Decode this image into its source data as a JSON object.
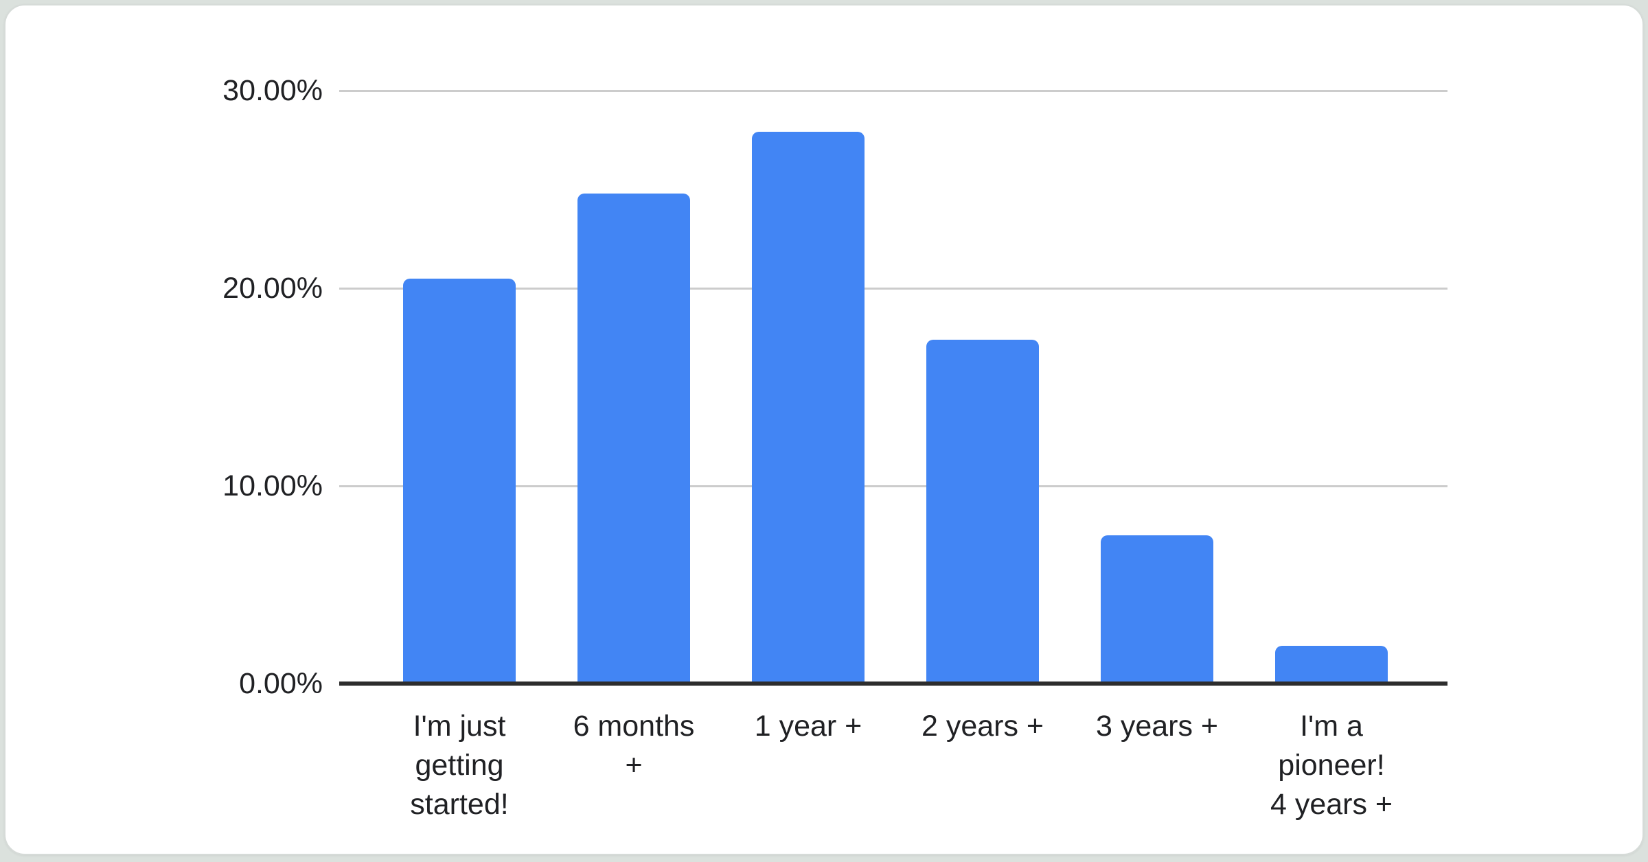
{
  "page": {
    "background_color": "#dbe1dd",
    "card_background_color": "#ffffff"
  },
  "chart_data": {
    "type": "bar",
    "title": "",
    "categories": [
      "I'm just getting started!",
      "6 months +",
      "1 year +",
      "2 years +",
      "3 years +",
      "I'm a pioneer! 4 years +"
    ],
    "category_lines": [
      [
        "I'm just",
        "getting",
        "started!"
      ],
      [
        "6 months",
        "+"
      ],
      [
        "1 year +"
      ],
      [
        "2 years +"
      ],
      [
        "3 years +"
      ],
      [
        "I'm a",
        "pioneer!",
        "4 years +"
      ]
    ],
    "values": [
      20.5,
      24.8,
      27.9,
      17.4,
      7.5,
      1.9
    ],
    "y_ticks": [
      {
        "label": "30.00%",
        "value": 30
      },
      {
        "label": "20.00%",
        "value": 20
      },
      {
        "label": "10.00%",
        "value": 10
      },
      {
        "label": "0.00%",
        "value": 0
      }
    ],
    "ylim": [
      0,
      30
    ],
    "xlabel": "",
    "ylabel": "",
    "grid": true,
    "legend": "none",
    "bar_color": "#4285f4",
    "gridline_color": "#cccccc",
    "axis_color": "#2d2d2d",
    "text_color": "#202124"
  }
}
